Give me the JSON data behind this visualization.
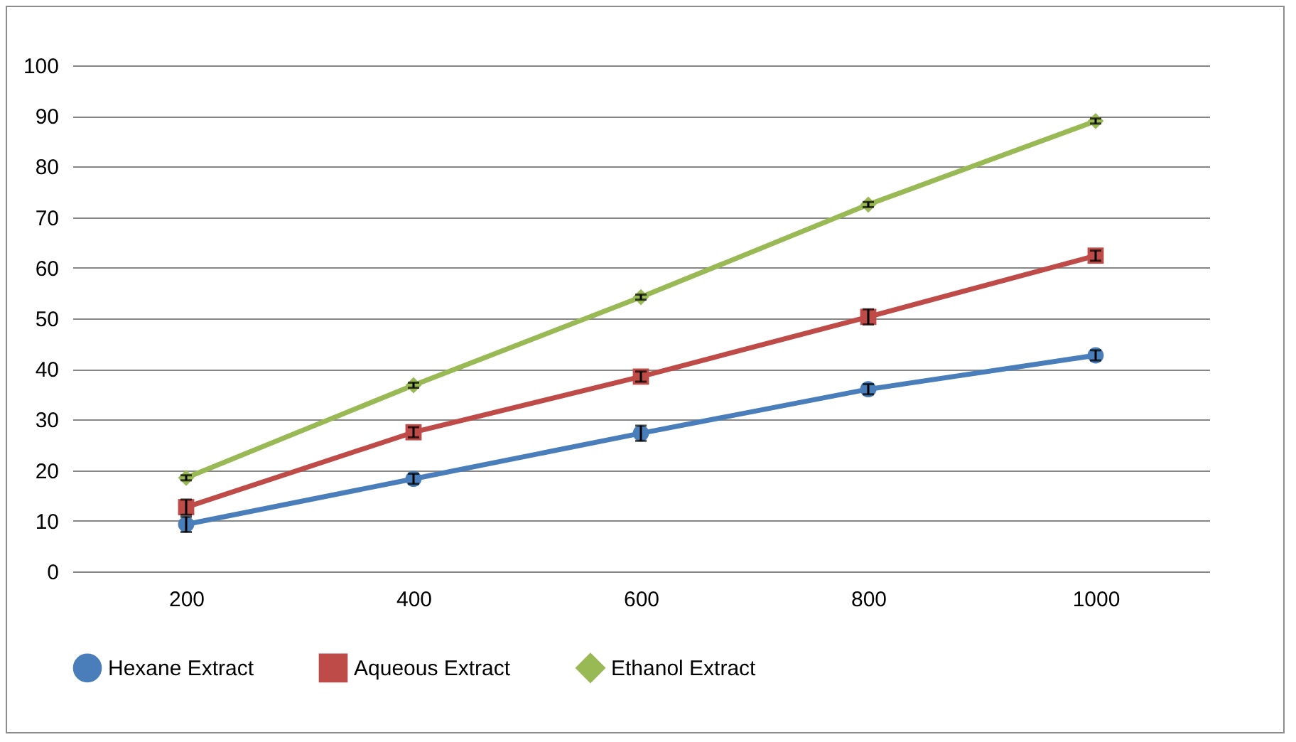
{
  "chart_data": {
    "type": "line",
    "categories": [
      "200",
      "400",
      "600",
      "800",
      "1000"
    ],
    "series": [
      {
        "name": "Hexane Extract",
        "color": "#4a7ebb",
        "marker": "circle",
        "values": [
          9.3,
          18.3,
          27.3,
          36,
          42.7
        ],
        "errors": [
          1.5,
          1,
          1.5,
          1,
          1
        ]
      },
      {
        "name": "Aqueous Extract",
        "color": "#be4b48",
        "marker": "square",
        "values": [
          12.7,
          27.5,
          38.5,
          50.3,
          62.4
        ],
        "errors": [
          1.5,
          1,
          1,
          1.5,
          1
        ]
      },
      {
        "name": "Ethanol Extract",
        "color": "#98b954",
        "marker": "diamond",
        "values": [
          18.5,
          36.8,
          54.2,
          72.5,
          89
        ],
        "errors": [
          0.5,
          0.5,
          0.5,
          0.5,
          0.5
        ]
      }
    ],
    "ylim": [
      0,
      100
    ],
    "yticks": [
      0,
      10,
      20,
      30,
      40,
      50,
      60,
      70,
      80,
      90,
      100
    ],
    "grid": "y",
    "legend": "bottom"
  }
}
